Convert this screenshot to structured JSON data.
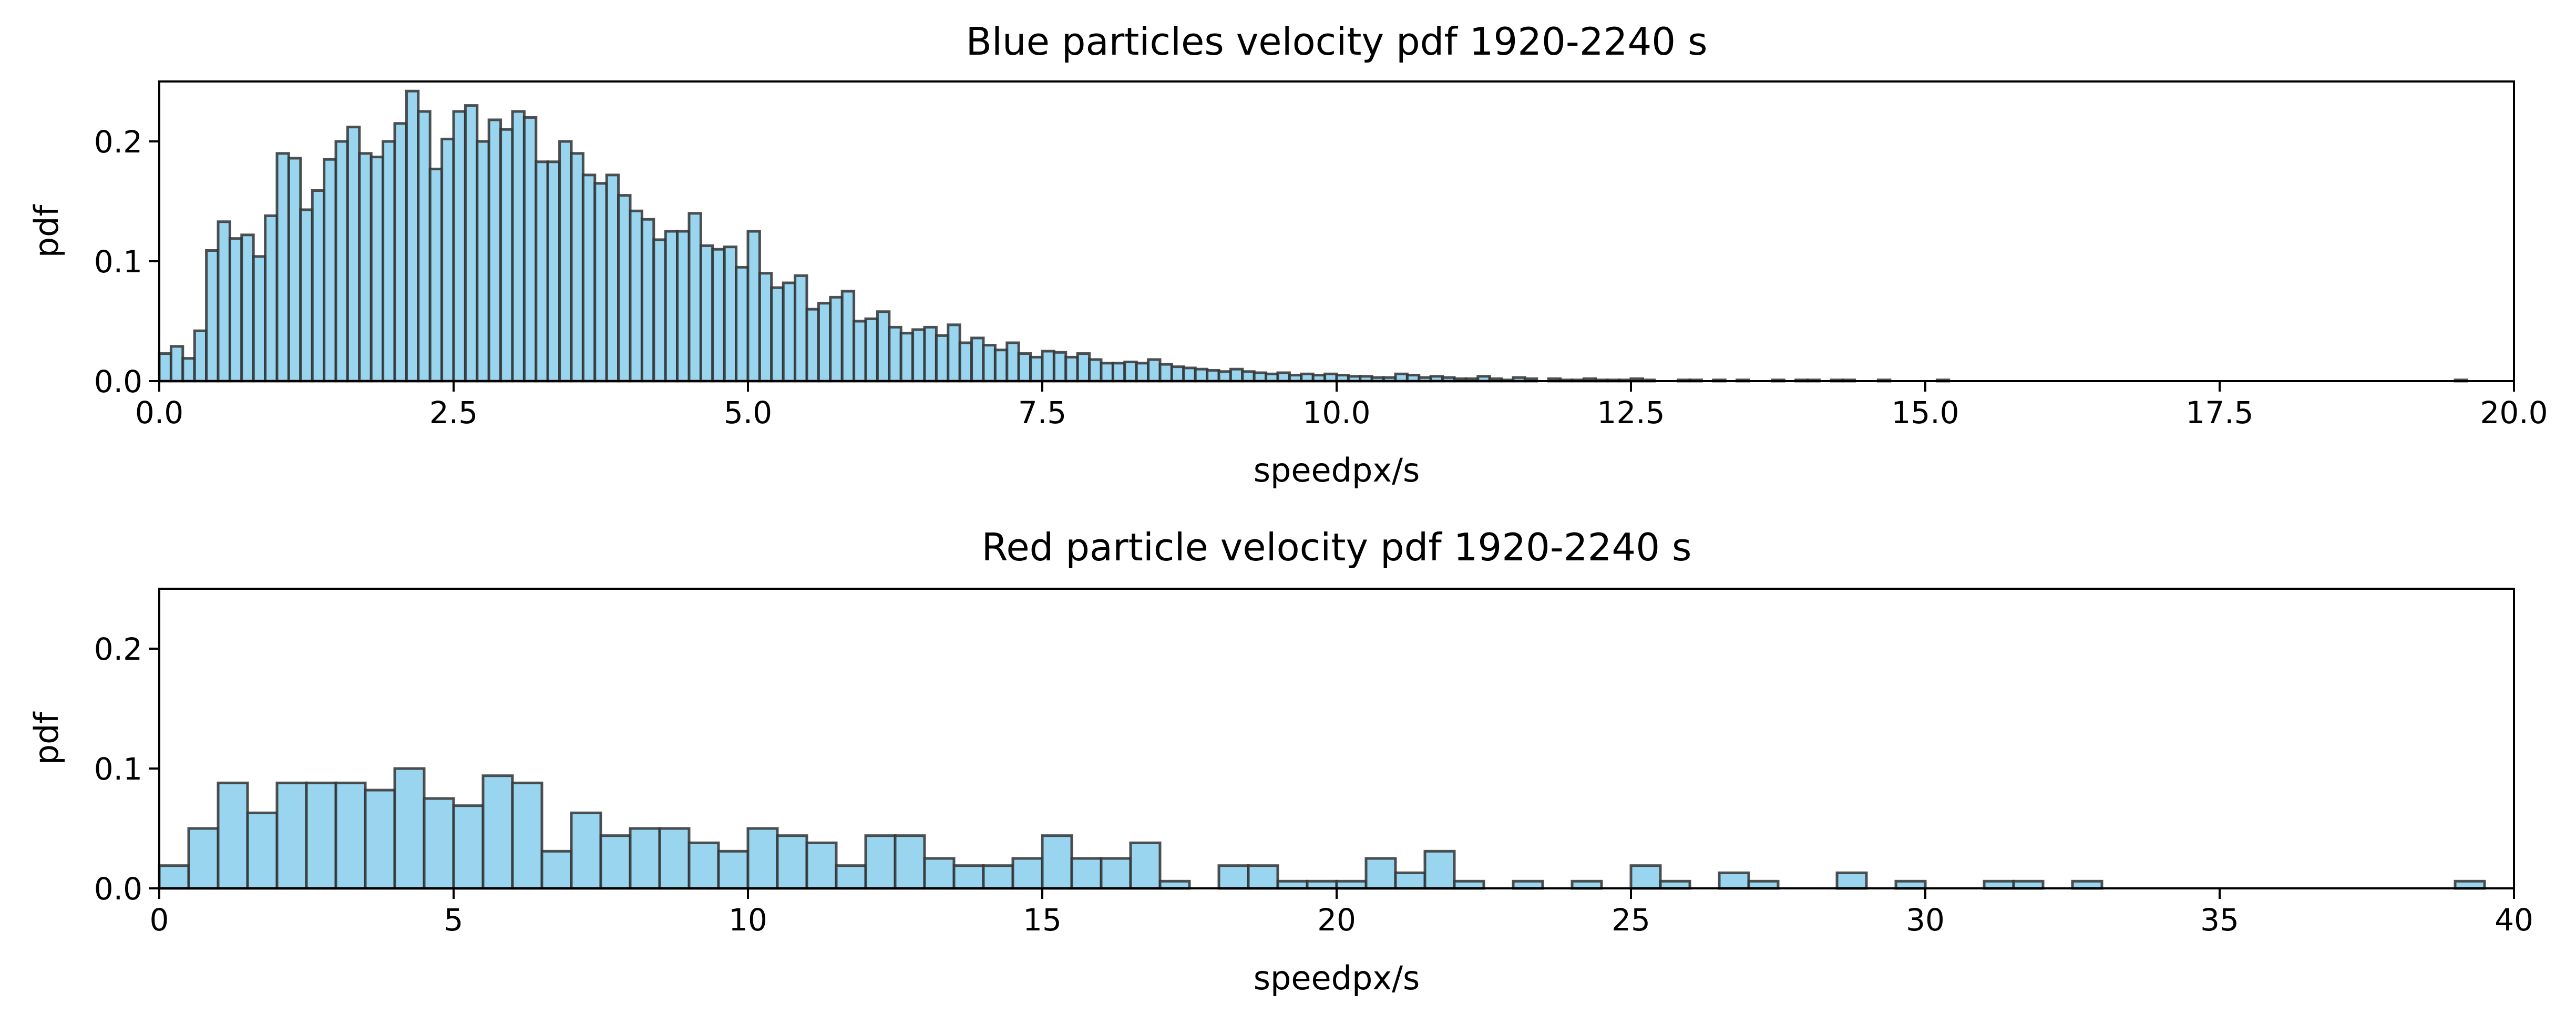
{
  "figure": {
    "style": {
      "bar_fill": "#87ceeb",
      "bar_stroke": "#333333",
      "bar_opacity": 0.85,
      "axis_color": "#000000",
      "background": "#ffffff"
    }
  },
  "chart_data": [
    {
      "type": "bar",
      "title": "Blue particles velocity pdf 1920-2240 s",
      "xlabel": "speedpx/s",
      "ylabel": "pdf",
      "xlim": [
        0.0,
        20.0
      ],
      "ylim": [
        0.0,
        0.25
      ],
      "xticks": [
        0.0,
        2.5,
        5.0,
        7.5,
        10.0,
        12.5,
        15.0,
        17.5,
        20.0
      ],
      "xtick_labels": [
        "0.0",
        "2.5",
        "5.0",
        "7.5",
        "10.0",
        "12.5",
        "15.0",
        "17.5",
        "20.0"
      ],
      "yticks": [
        0.0,
        0.1,
        0.2
      ],
      "ytick_labels": [
        "0.0",
        "0.1",
        "0.2"
      ],
      "bin_start": 0.0,
      "bin_width": 0.1,
      "values": [
        0.023,
        0.029,
        0.019,
        0.042,
        0.109,
        0.133,
        0.119,
        0.122,
        0.104,
        0.138,
        0.19,
        0.186,
        0.143,
        0.159,
        0.185,
        0.2,
        0.212,
        0.19,
        0.187,
        0.2,
        0.215,
        0.242,
        0.225,
        0.177,
        0.202,
        0.225,
        0.23,
        0.2,
        0.218,
        0.21,
        0.225,
        0.22,
        0.183,
        0.183,
        0.2,
        0.19,
        0.172,
        0.165,
        0.172,
        0.155,
        0.142,
        0.135,
        0.118,
        0.125,
        0.125,
        0.14,
        0.113,
        0.11,
        0.112,
        0.095,
        0.125,
        0.09,
        0.078,
        0.082,
        0.088,
        0.06,
        0.065,
        0.07,
        0.075,
        0.05,
        0.052,
        0.058,
        0.045,
        0.04,
        0.043,
        0.045,
        0.038,
        0.047,
        0.032,
        0.036,
        0.03,
        0.026,
        0.032,
        0.023,
        0.02,
        0.025,
        0.024,
        0.02,
        0.023,
        0.018,
        0.015,
        0.015,
        0.016,
        0.015,
        0.018,
        0.014,
        0.012,
        0.011,
        0.01,
        0.009,
        0.008,
        0.01,
        0.008,
        0.007,
        0.006,
        0.007,
        0.005,
        0.006,
        0.005,
        0.006,
        0.005,
        0.004,
        0.004,
        0.003,
        0.003,
        0.006,
        0.005,
        0.003,
        0.004,
        0.003,
        0.002,
        0.002,
        0.004,
        0.002,
        0.001,
        0.003,
        0.002,
        0.0,
        0.002,
        0.001,
        0.001,
        0.002,
        0.001,
        0.001,
        0.001,
        0.002,
        0.001,
        0.0,
        0.0,
        0.001,
        0.001,
        0.0,
        0.001,
        0.0,
        0.001,
        0.0,
        0.0,
        0.001,
        0.0,
        0.001,
        0.001,
        0.0,
        0.001,
        0.001,
        0.0,
        0.0,
        0.001,
        0.0,
        0.0,
        0.0,
        0.0,
        0.001,
        0.0,
        0.0,
        0.0,
        0.0,
        0.0,
        0.0,
        0.0,
        0.0,
        0.0,
        0.0,
        0.0,
        0.0,
        0.0,
        0.0,
        0.0,
        0.0,
        0.0,
        0.0,
        0.0,
        0.0,
        0.0,
        0.0,
        0.0,
        0.0,
        0.0,
        0.0,
        0.0,
        0.0,
        0.0,
        0.0,
        0.0,
        0.0,
        0.0,
        0.0,
        0.0,
        0.0,
        0.0,
        0.0,
        0.0,
        0.0,
        0.0,
        0.0,
        0.0,
        0.001
      ]
    },
    {
      "type": "bar",
      "title": "Red particle velocity pdf 1920-2240 s",
      "xlabel": "speedpx/s",
      "ylabel": "pdf",
      "xlim": [
        0,
        40
      ],
      "ylim": [
        0.0,
        0.25
      ],
      "xticks": [
        0,
        5,
        10,
        15,
        20,
        25,
        30,
        35,
        40
      ],
      "xtick_labels": [
        "0",
        "5",
        "10",
        "15",
        "20",
        "25",
        "30",
        "35",
        "40"
      ],
      "yticks": [
        0.0,
        0.1,
        0.2
      ],
      "ytick_labels": [
        "0.0",
        "0.1",
        "0.2"
      ],
      "bin_start": 0.0,
      "bin_width": 0.5,
      "values": [
        0.019,
        0.05,
        0.088,
        0.063,
        0.088,
        0.088,
        0.088,
        0.082,
        0.1,
        0.075,
        0.069,
        0.094,
        0.088,
        0.031,
        0.063,
        0.044,
        0.05,
        0.05,
        0.038,
        0.031,
        0.05,
        0.044,
        0.038,
        0.019,
        0.044,
        0.044,
        0.025,
        0.019,
        0.019,
        0.025,
        0.044,
        0.025,
        0.025,
        0.038,
        0.006,
        0.0,
        0.019,
        0.019,
        0.006,
        0.006,
        0.006,
        0.025,
        0.013,
        0.031,
        0.006,
        0.0,
        0.006,
        0.0,
        0.006,
        0.0,
        0.019,
        0.006,
        0.0,
        0.013,
        0.006,
        0.0,
        0.0,
        0.013,
        0.0,
        0.006,
        0.0,
        0.0,
        0.006,
        0.006,
        0.0,
        0.006,
        0.0,
        0.0,
        0.0,
        0.0,
        0.0,
        0.0,
        0.0,
        0.0,
        0.0,
        0.0,
        0.0,
        0.0,
        0.006
      ]
    }
  ]
}
